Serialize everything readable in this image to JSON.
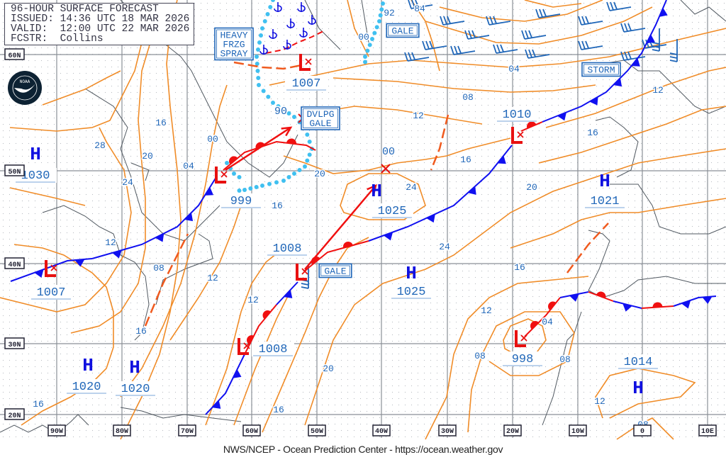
{
  "header": {
    "line1": "96-HOUR SURFACE FORECAST",
    "line2": "ISSUED: 14:36 UTC 18 MAR 2026",
    "line3": "VALID:  12:00 UTC 22 MAR 2026",
    "line4": "FCSTR:  Collins"
  },
  "logo": {
    "text": "NOAA",
    "icon": "noaa-logo"
  },
  "footer": "NWS/NCEP - Ocean Prediction Center - https://ocean.weather.gov",
  "latitude_labels": [
    "60N",
    "50N",
    "40N",
    "30N",
    "20N"
  ],
  "longitude_labels": [
    "90W",
    "80W",
    "70W",
    "60W",
    "50W",
    "40W",
    "30W",
    "20W",
    "10W",
    "0",
    "10E"
  ],
  "pressure_centers": [
    {
      "type": "H",
      "pressure": "1030"
    },
    {
      "type": "L",
      "pressure": "1007"
    },
    {
      "type": "L",
      "pressure": "999"
    },
    {
      "type": "L",
      "pressure": "1007"
    },
    {
      "type": "X",
      "pressure": "90"
    },
    {
      "type": "X",
      "pressure": "00"
    },
    {
      "type": "H",
      "pressure": "1025"
    },
    {
      "type": "L",
      "pressure": "1008"
    },
    {
      "type": "H",
      "pressure": "1025"
    },
    {
      "type": "L",
      "pressure": "1008"
    },
    {
      "type": "H",
      "pressure": "1020"
    },
    {
      "type": "H",
      "pressure": "1020"
    },
    {
      "type": "L",
      "pressure": "1010"
    },
    {
      "type": "H",
      "pressure": "1021"
    },
    {
      "type": "L",
      "pressure": "998"
    },
    {
      "type": "H",
      "pressure": "1014"
    }
  ],
  "warnings": [
    {
      "label": "HEAVY\nFRZG\nSPRAY"
    },
    {
      "label": "GALE"
    },
    {
      "label": "DVLPG\nGALE"
    },
    {
      "label": "STORM"
    },
    {
      "label": "GALE"
    }
  ],
  "isobar_labels": [
    "92",
    "84",
    "00",
    "04",
    "08",
    "12",
    "12",
    "16",
    "16",
    "20",
    "24",
    "24",
    "16",
    "12",
    "08",
    "04",
    "08",
    "20",
    "16",
    "12",
    "12",
    "08",
    "12",
    "16",
    "16",
    "20",
    "24",
    "28",
    "16",
    "04",
    "00",
    "16",
    "20",
    "12",
    "08"
  ],
  "colors": {
    "isobar": "#f08c28",
    "label": "#1f66b8",
    "high": "#1010e0",
    "low": "#e81010",
    "cold_front": "#1010f0",
    "warm_front": "#f01010",
    "ice_edge": "#40c0f0",
    "grid": "#8a8f96",
    "coast": "#505860"
  }
}
